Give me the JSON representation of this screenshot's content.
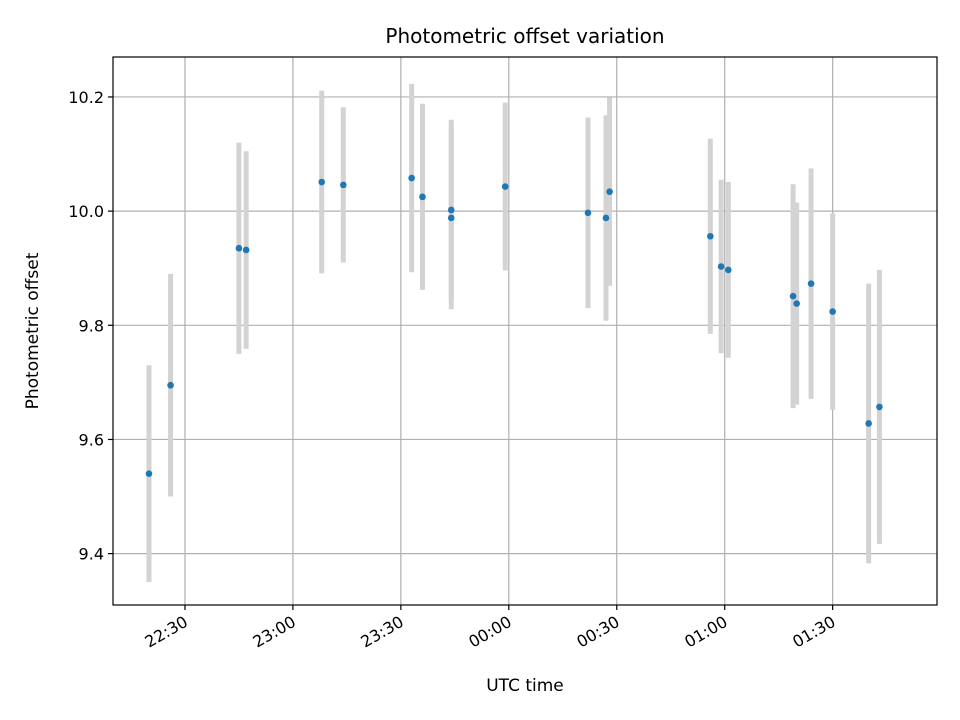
{
  "chart_data": {
    "type": "scatter",
    "title": "Photometric offset variation",
    "xlabel": "UTC time",
    "ylabel": "Photometric offset",
    "x_is_time": true,
    "xlim": [
      "22:10",
      "01:59"
    ],
    "ylim": [
      9.31,
      10.27
    ],
    "xticks": [
      "22:30",
      "23:00",
      "23:30",
      "00:00",
      "00:30",
      "01:00",
      "01:30"
    ],
    "yticks": [
      9.4,
      9.6,
      9.8,
      10.0,
      10.2
    ],
    "grid": true,
    "colors": {
      "point": "#1f77b4",
      "errorbar": "#d3d3d3",
      "grid": "#b0b0b0"
    },
    "points": [
      {
        "x": "22:20",
        "y": 9.54,
        "err": 0.19
      },
      {
        "x": "22:26",
        "y": 9.695,
        "err": 0.195
      },
      {
        "x": "22:45",
        "y": 9.935,
        "err": 0.185
      },
      {
        "x": "22:47",
        "y": 9.932,
        "err": 0.173
      },
      {
        "x": "23:08",
        "y": 10.051,
        "err": 0.16
      },
      {
        "x": "23:14",
        "y": 10.046,
        "err": 0.136
      },
      {
        "x": "23:33",
        "y": 10.058,
        "err": 0.165
      },
      {
        "x": "23:36",
        "y": 10.025,
        "err": 0.163
      },
      {
        "x": "23:44",
        "y": 10.002,
        "err": 0.158
      },
      {
        "x": "23:44",
        "y": 9.988,
        "err": 0.16
      },
      {
        "x": "23:59",
        "y": 10.043,
        "err": 0.147
      },
      {
        "x": "00:22",
        "y": 9.997,
        "err": 0.167
      },
      {
        "x": "00:27",
        "y": 9.988,
        "err": 0.18
      },
      {
        "x": "00:28",
        "y": 10.034,
        "err": 0.165
      },
      {
        "x": "00:56",
        "y": 9.956,
        "err": 0.171
      },
      {
        "x": "00:59",
        "y": 9.903,
        "err": 0.152
      },
      {
        "x": "01:01",
        "y": 9.897,
        "err": 0.154
      },
      {
        "x": "01:19",
        "y": 9.851,
        "err": 0.196
      },
      {
        "x": "01:20",
        "y": 9.838,
        "err": 0.177
      },
      {
        "x": "01:24",
        "y": 9.873,
        "err": 0.202
      },
      {
        "x": "01:30",
        "y": 9.824,
        "err": 0.172
      },
      {
        "x": "01:40",
        "y": 9.628,
        "err": 0.245
      },
      {
        "x": "01:43",
        "y": 9.657,
        "err": 0.24
      }
    ]
  }
}
